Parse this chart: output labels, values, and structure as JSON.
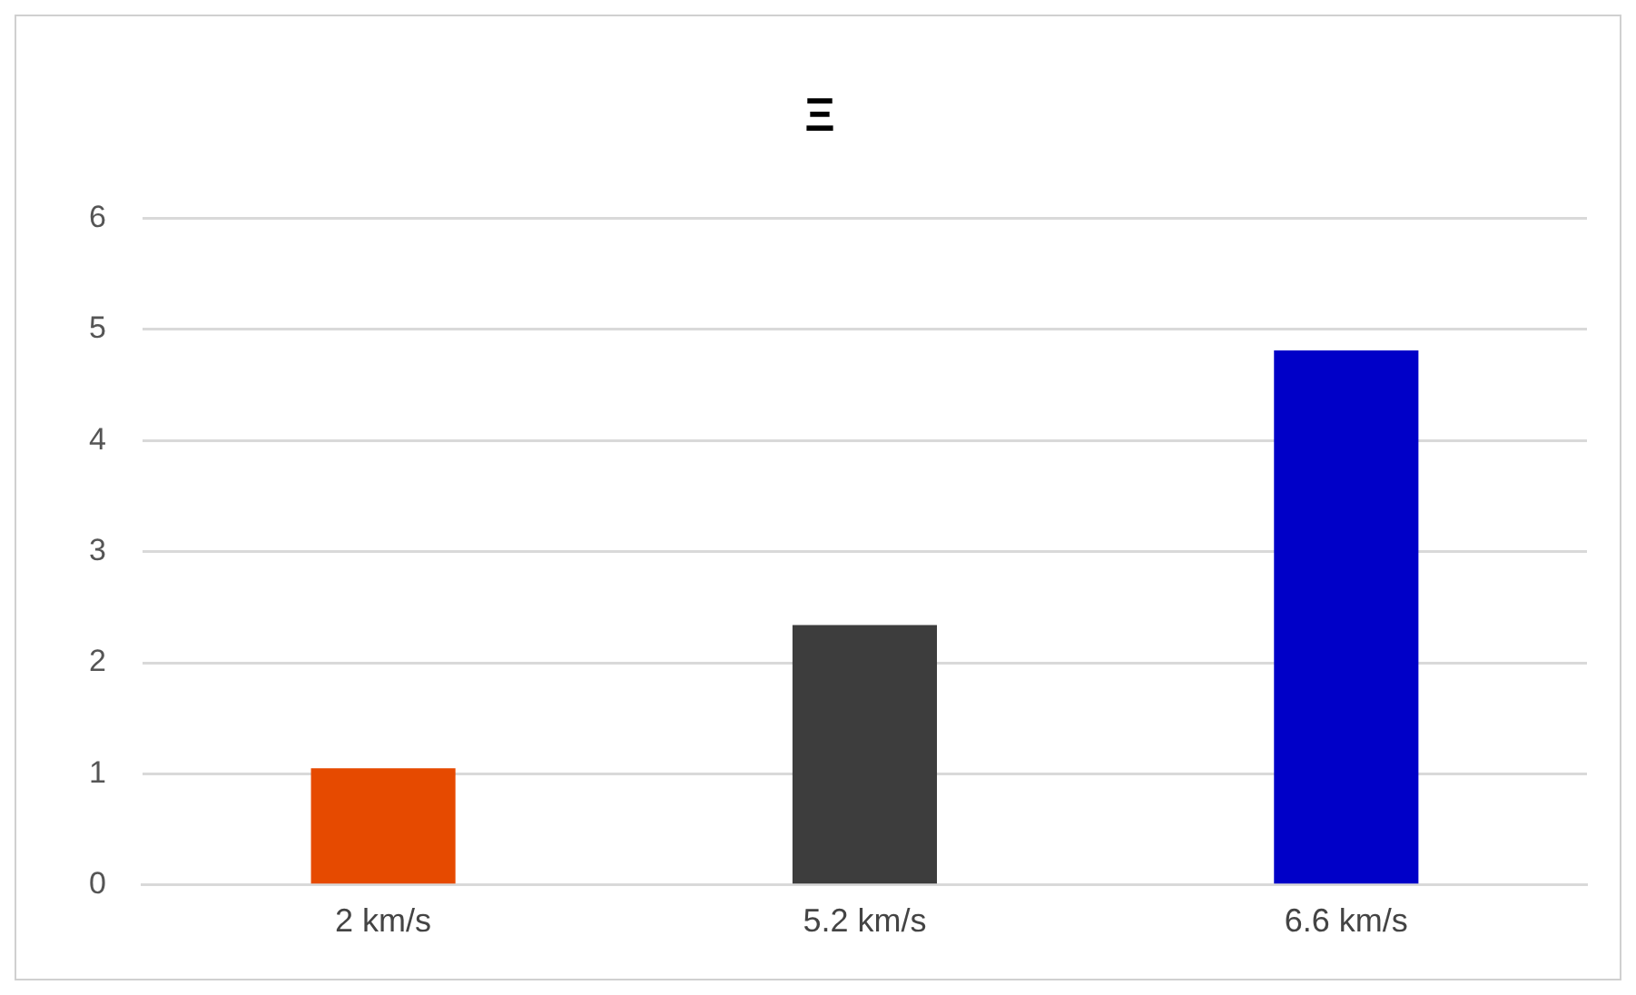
{
  "chart_data": {
    "type": "bar",
    "title": "Ξ",
    "categories": [
      "2 km/s",
      "5.2 km/s",
      "6.6 km/s"
    ],
    "values": [
      1.05,
      2.34,
      4.81
    ],
    "colors": [
      "#e64a00",
      "#3d3d3d",
      "#0000c8"
    ],
    "ylim": [
      0,
      6
    ],
    "yticks": [
      0,
      1,
      2,
      3,
      4,
      5,
      6
    ],
    "grid": "y",
    "legend": false
  }
}
